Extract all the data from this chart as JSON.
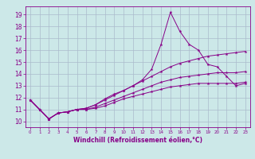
{
  "xlabel": "Windchill (Refroidissement éolien,°C)",
  "xlim": [
    -0.5,
    23.5
  ],
  "ylim": [
    9.5,
    19.7
  ],
  "yticks": [
    10,
    11,
    12,
    13,
    14,
    15,
    16,
    17,
    18,
    19
  ],
  "xticks": [
    0,
    1,
    2,
    3,
    4,
    5,
    6,
    7,
    8,
    9,
    10,
    11,
    12,
    13,
    14,
    15,
    16,
    17,
    18,
    19,
    20,
    21,
    22,
    23
  ],
  "bg_color": "#cce8e8",
  "line_color": "#880088",
  "grid_color": "#aabbcc",
  "series": {
    "line1_x": [
      0,
      1,
      2,
      3,
      4,
      5,
      6,
      7,
      8,
      9,
      10,
      11,
      12,
      13,
      14,
      15,
      16,
      17,
      18,
      19,
      20,
      21,
      22,
      23
    ],
    "line1_y": [
      11.8,
      11.0,
      10.2,
      10.7,
      10.8,
      11.0,
      11.1,
      11.4,
      11.9,
      12.3,
      12.6,
      13.0,
      13.5,
      14.4,
      16.5,
      19.2,
      17.6,
      16.5,
      16.0,
      14.8,
      14.6,
      13.8,
      13.0,
      13.2
    ],
    "line2_x": [
      0,
      1,
      2,
      3,
      4,
      5,
      6,
      7,
      8,
      9,
      10,
      11,
      12,
      13,
      14,
      15,
      16,
      17,
      18,
      19,
      20,
      21,
      22,
      23
    ],
    "line2_y": [
      11.8,
      11.0,
      10.2,
      10.7,
      10.8,
      11.0,
      11.1,
      11.4,
      11.8,
      12.2,
      12.6,
      13.0,
      13.4,
      13.8,
      14.2,
      14.6,
      14.9,
      15.1,
      15.3,
      15.5,
      15.6,
      15.7,
      15.8,
      15.9
    ],
    "line3_x": [
      0,
      1,
      2,
      3,
      4,
      5,
      6,
      7,
      8,
      9,
      10,
      11,
      12,
      13,
      14,
      15,
      16,
      17,
      18,
      19,
      20,
      21,
      22,
      23
    ],
    "line3_y": [
      11.8,
      11.0,
      10.2,
      10.7,
      10.8,
      11.0,
      11.0,
      11.2,
      11.5,
      11.8,
      12.1,
      12.4,
      12.7,
      13.0,
      13.3,
      13.5,
      13.7,
      13.8,
      13.9,
      14.0,
      14.1,
      14.1,
      14.1,
      14.2
    ],
    "line4_x": [
      0,
      1,
      2,
      3,
      4,
      5,
      6,
      7,
      8,
      9,
      10,
      11,
      12,
      13,
      14,
      15,
      16,
      17,
      18,
      19,
      20,
      21,
      22,
      23
    ],
    "line4_y": [
      11.8,
      11.0,
      10.2,
      10.7,
      10.8,
      11.0,
      11.0,
      11.1,
      11.3,
      11.6,
      11.9,
      12.1,
      12.3,
      12.5,
      12.7,
      12.9,
      13.0,
      13.1,
      13.2,
      13.2,
      13.2,
      13.2,
      13.2,
      13.3
    ]
  }
}
